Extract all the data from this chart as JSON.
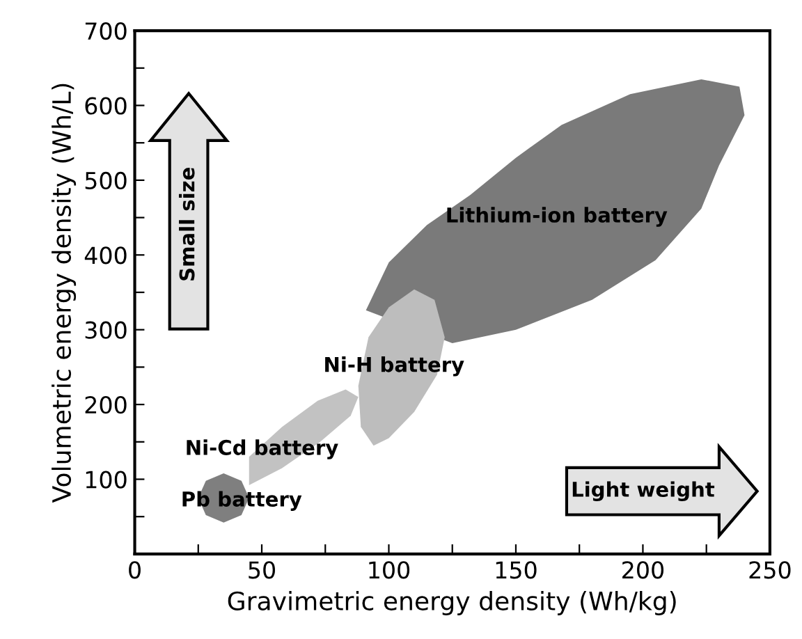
{
  "chart_data": {
    "type": "area",
    "xlabel": "Gravimetric energy density (Wh/kg)",
    "ylabel": "Volumetric energy density (Wh/L)",
    "xlim": [
      0,
      250
    ],
    "ylim": [
      0,
      700
    ],
    "xticks": [
      0,
      {
        "value": 25,
        "label": null
      },
      50,
      {
        "value": 75,
        "label": null
      },
      100,
      {
        "value": 125,
        "label": null
      },
      150,
      {
        "value": 175,
        "label": null
      },
      200,
      {
        "value": 225,
        "label": null
      },
      250
    ],
    "yticks": [
      {
        "value": 0,
        "label": null
      },
      {
        "value": 50,
        "label": null
      },
      100,
      {
        "value": 150,
        "label": null
      },
      200,
      {
        "value": 250,
        "label": null
      },
      300,
      {
        "value": 350,
        "label": null
      },
      400,
      {
        "value": 450,
        "label": null
      },
      500,
      {
        "value": 550,
        "label": null
      },
      600,
      {
        "value": 650,
        "label": null
      },
      700
    ],
    "grid": false,
    "series": [
      {
        "name": "Lithium-ion battery",
        "color": "#7a7a7a",
        "x": [
          91,
          100,
          115,
          132,
          150,
          168,
          195,
          223,
          238,
          240,
          230,
          223,
          205,
          180,
          150,
          125
        ],
        "values": [
          326,
          390,
          440,
          480,
          530,
          574,
          615,
          635,
          625,
          587,
          520,
          462,
          393,
          340,
          300,
          282
        ]
      },
      {
        "name": "Ni-H battery",
        "color": "#bdbdbd",
        "x": [
          88,
          92,
          100,
          110,
          118,
          122,
          119,
          110,
          100,
          94,
          89
        ],
        "values": [
          225,
          290,
          330,
          354,
          340,
          290,
          240,
          190,
          155,
          145,
          170
        ]
      },
      {
        "name": "Ni-Cd battery",
        "color": "#c2c2c2",
        "x": [
          45,
          58,
          72,
          83,
          88,
          85,
          73,
          58,
          45
        ],
        "values": [
          130,
          170,
          205,
          220,
          210,
          185,
          150,
          115,
          92
        ]
      },
      {
        "name": "Pb battery",
        "color": "#7f7f7f",
        "x": [
          25,
          28,
          35,
          42,
          45,
          42,
          35,
          28
        ],
        "values": [
          75,
          98,
          108,
          98,
          75,
          52,
          42,
          52
        ]
      }
    ],
    "annotations": [
      "Small size",
      "Light weight"
    ]
  }
}
